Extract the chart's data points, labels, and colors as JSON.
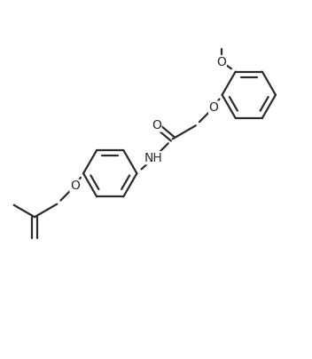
{
  "bg_color": "#ffffff",
  "line_color": "#2b2b2b",
  "line_width": 1.6,
  "font_size": 10,
  "figsize": [
    3.52,
    4.04
  ],
  "dpi": 100,
  "xlim": [
    -1,
    10
  ],
  "ylim": [
    -0.5,
    11.5
  ]
}
